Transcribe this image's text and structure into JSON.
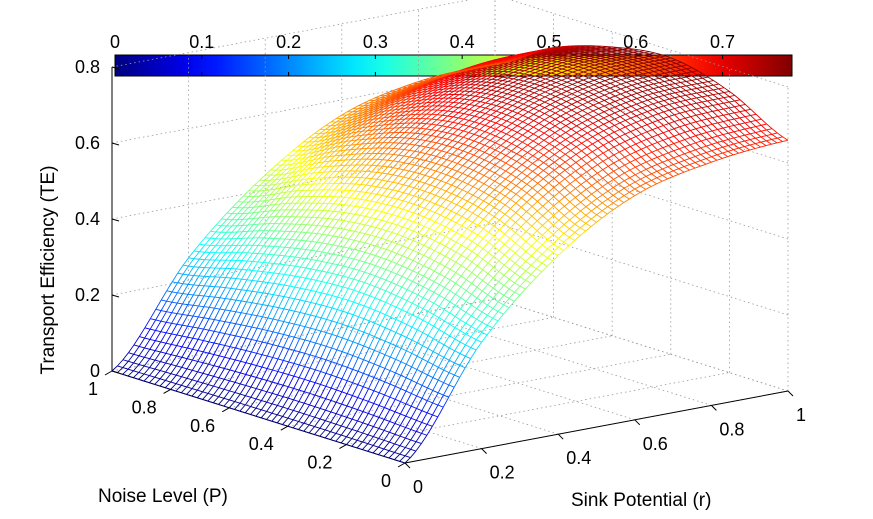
{
  "chart_data": {
    "type": "surface",
    "title": "",
    "xlabel": "Sink Potential (r)",
    "ylabel": "Noise Level (P)",
    "zlabel": "Transport Efficiency (TE)",
    "xlim": [
      0,
      1
    ],
    "ylim": [
      0,
      1
    ],
    "zlim": [
      0,
      0.8
    ],
    "colormap": "jet",
    "colorbar": {
      "position": "top",
      "min": 0,
      "max": 0.78,
      "ticks": [
        "0",
        "0.1",
        "0.2",
        "0.3",
        "0.4",
        "0.5",
        "0.6",
        "0.7"
      ]
    },
    "x_ticks": [
      "0",
      "0.2",
      "0.4",
      "0.6",
      "0.8",
      "1"
    ],
    "y_ticks": [
      "0",
      "0.2",
      "0.4",
      "0.6",
      "0.8",
      "1"
    ],
    "z_ticks": [
      "0",
      "0.2",
      "0.4",
      "0.6",
      "0.8"
    ],
    "grid": true,
    "x": [
      0,
      0.2,
      0.4,
      0.6,
      0.8,
      1.0
    ],
    "y": [
      0,
      0.2,
      0.4,
      0.6,
      0.8,
      1.0
    ],
    "z": [
      [
        0.0,
        0.28,
        0.47,
        0.59,
        0.64,
        0.66
      ],
      [
        0.0,
        0.32,
        0.54,
        0.67,
        0.73,
        0.74
      ],
      [
        0.0,
        0.34,
        0.57,
        0.71,
        0.77,
        0.78
      ],
      [
        0.0,
        0.33,
        0.56,
        0.7,
        0.76,
        0.76
      ],
      [
        0.0,
        0.3,
        0.51,
        0.64,
        0.7,
        0.71
      ],
      [
        0.0,
        0.26,
        0.44,
        0.56,
        0.61,
        0.62
      ]
    ]
  }
}
